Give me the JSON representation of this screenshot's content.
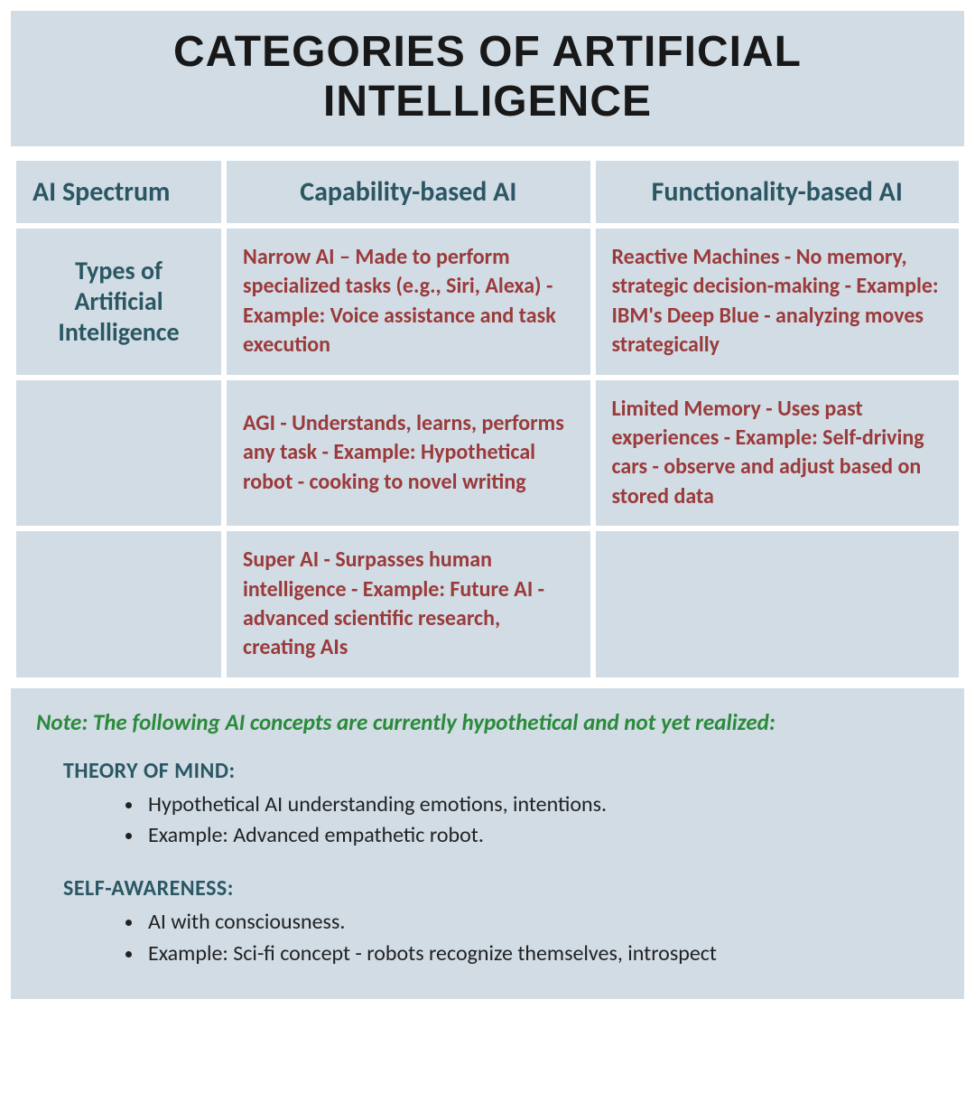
{
  "title": "Categories of Artificial Intelligence",
  "colors": {
    "panel_bg": "#d1dce5",
    "heading_text": "#2a5763",
    "body_text": "#222222",
    "cell_text": "#9b3a3a",
    "note_lead": "#2a8a3a",
    "title_text": "#181818"
  },
  "typography": {
    "title_fontsize": 48,
    "header_fontsize": 30,
    "rowlabel_fontsize": 28,
    "cell_fontsize": 24,
    "note_fontsize": 25,
    "concept_title_fontsize": 24,
    "concept_item_fontsize": 24
  },
  "table": {
    "type": "table",
    "columns": [
      "AI Spectrum",
      "Capability-based AI",
      "Functionality-based AI"
    ],
    "column_widths_pct": [
      22,
      39,
      39
    ],
    "row_label": "Types of Artificial Intelligence",
    "rows": [
      {
        "capability": "Narrow AI – Made to perform specialized tasks (e.g., Siri, Alexa) - Example: Voice assistance and task execution",
        "functionality": "Reactive Machines - No memory, strategic decision-making - Example: IBM's Deep Blue - analyzing moves strategically"
      },
      {
        "capability": "AGI - Understands, learns, performs any task - Example: Hypothetical robot - cooking to novel writing",
        "functionality": "Limited Memory - Uses past experiences - Example: Self-driving cars - observe and adjust based on stored data"
      },
      {
        "capability": "Super AI - Surpasses human intelligence - Example: Future AI - advanced scientific research, creating AIs",
        "functionality": ""
      }
    ]
  },
  "notes": {
    "lead": "Note: The following AI concepts are currently hypothetical and not yet realized:",
    "concepts": [
      {
        "title": "Theory of Mind:",
        "items": [
          "Hypothetical AI understanding emotions, intentions.",
          "Example: Advanced empathetic robot."
        ]
      },
      {
        "title": "Self-Awareness:",
        "items": [
          "AI with consciousness.",
          "Example: Sci-fi concept - robots recognize themselves, introspect"
        ]
      }
    ]
  }
}
